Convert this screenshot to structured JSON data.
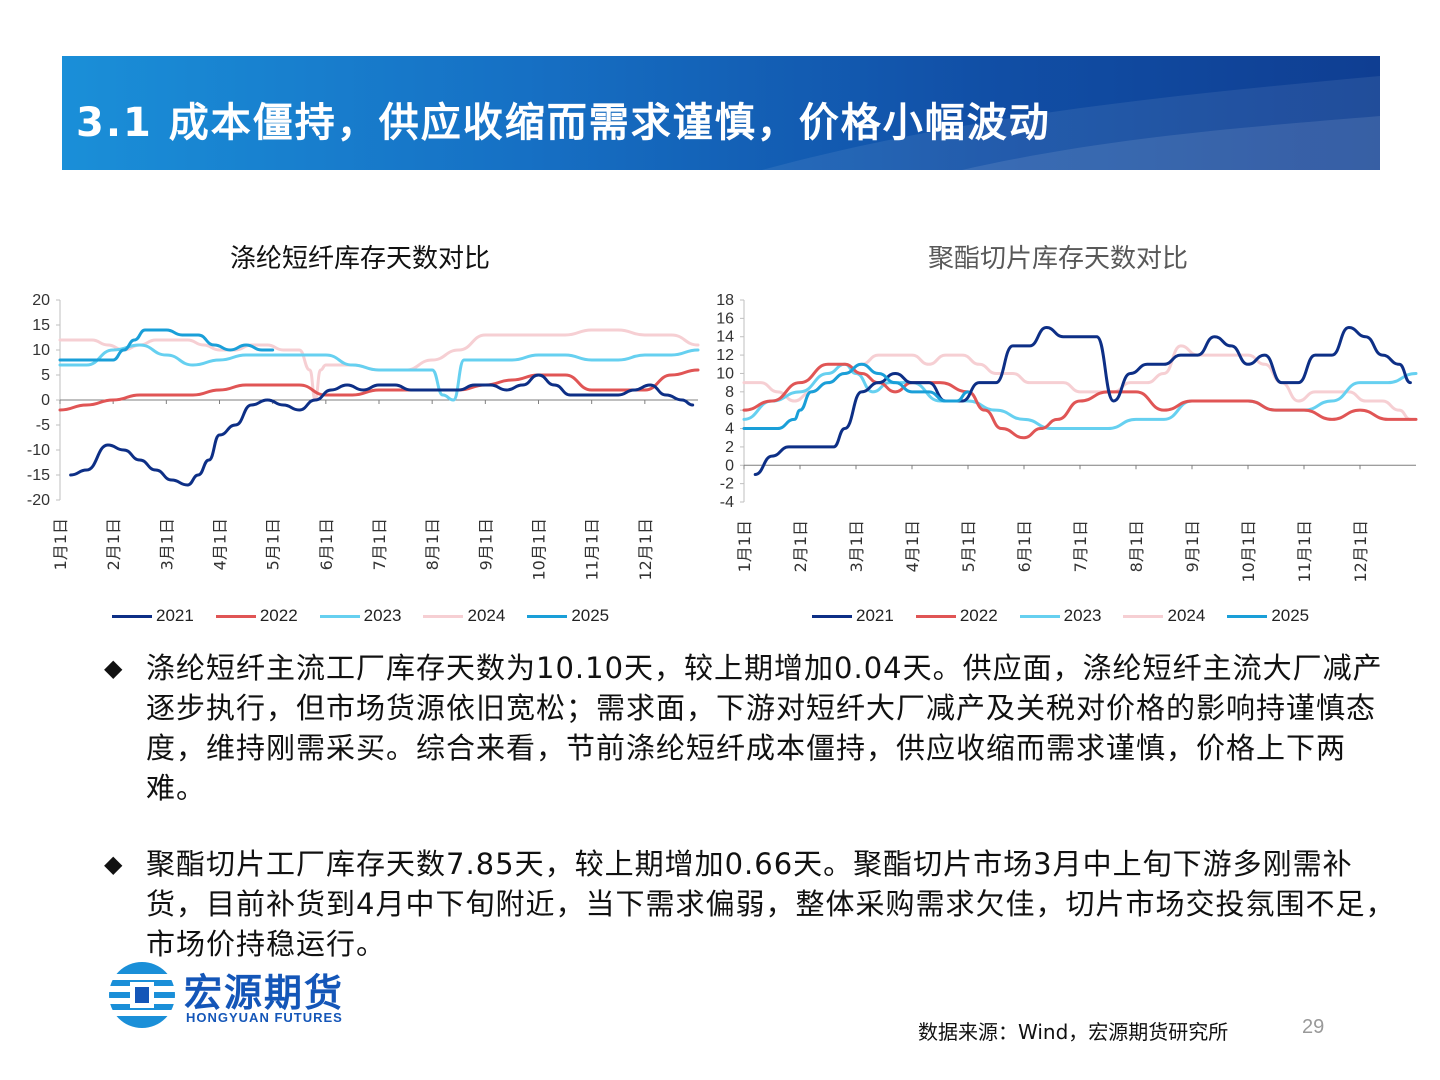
{
  "header": {
    "title": "3.1 成本僵持，供应收缩而需求谨慎，价格小幅波动"
  },
  "series_colors": {
    "2021": "#0d2f86",
    "2022": "#e05555",
    "2023": "#66d0f0",
    "2024": "#f6cfd3",
    "2025": "#1a9fd8"
  },
  "chart_data": [
    {
      "type": "line",
      "title": "涤纶短纤库存天数对比",
      "months": [
        "1月1日",
        "2月1日",
        "3月1日",
        "4月1日",
        "5月1日",
        "6月1日",
        "7月1日",
        "8月1日",
        "9月1日",
        "10月1日",
        "11月1日",
        "12月1日"
      ],
      "ylim": [
        -20,
        20
      ],
      "yticks": [
        20,
        15,
        10,
        5,
        0,
        -5,
        -10,
        -15,
        -20
      ],
      "series": [
        {
          "name": "2021",
          "x": [
            0.2,
            0.5,
            0.9,
            1.2,
            1.5,
            1.8,
            2.1,
            2.4,
            2.6,
            2.8,
            3.0,
            3.3,
            3.6,
            3.9,
            4.2,
            4.5,
            4.8,
            5.1,
            5.4,
            5.7,
            6.0,
            6.3,
            6.6,
            6.9,
            7.2,
            7.5,
            7.8,
            8.1,
            8.4,
            8.7,
            9.0,
            9.3,
            9.6,
            9.9,
            10.2,
            10.5,
            10.8,
            11.1,
            11.4,
            11.7,
            11.9
          ],
          "y": [
            -15,
            -14,
            -9,
            -10,
            -12,
            -14,
            -16,
            -17,
            -15,
            -12,
            -7,
            -5,
            -1,
            0,
            -1,
            -2,
            0,
            2,
            3,
            2,
            3,
            3,
            2,
            2,
            2,
            2,
            3,
            3,
            2,
            3,
            5,
            3,
            1,
            1,
            1,
            1,
            2,
            3,
            1,
            0,
            -1
          ]
        },
        {
          "name": "2022",
          "x": [
            0.0,
            0.5,
            1.0,
            1.5,
            2.0,
            2.5,
            3.0,
            3.5,
            4.0,
            4.5,
            5.0,
            5.5,
            6.0,
            6.5,
            7.0,
            7.5,
            8.0,
            8.5,
            9.0,
            9.5,
            10.0,
            10.5,
            11.0,
            11.5,
            12.0
          ],
          "y": [
            -2,
            -1,
            0,
            1,
            1,
            1,
            2,
            3,
            3,
            3,
            1,
            1,
            2,
            2,
            2,
            2,
            3,
            4,
            5,
            5,
            2,
            2,
            2,
            5,
            6
          ]
        },
        {
          "name": "2023",
          "x": [
            0.0,
            0.5,
            1.0,
            1.5,
            2.0,
            2.5,
            3.0,
            3.5,
            4.0,
            4.5,
            5.0,
            5.5,
            6.0,
            6.5,
            7.0,
            7.2,
            7.4,
            7.6,
            8.0,
            8.5,
            9.0,
            9.5,
            10.0,
            10.5,
            11.0,
            11.5,
            12.0
          ],
          "y": [
            7,
            7,
            10,
            11,
            9,
            7,
            8,
            9,
            9,
            9,
            9,
            7,
            6,
            6,
            6,
            1,
            0,
            8,
            8,
            8,
            9,
            9,
            8,
            8,
            9,
            9,
            10
          ]
        },
        {
          "name": "2024",
          "x": [
            0.0,
            0.3,
            0.6,
            0.9,
            1.2,
            1.5,
            1.8,
            2.1,
            2.4,
            2.7,
            3.0,
            3.3,
            3.6,
            3.9,
            4.2,
            4.5,
            4.7,
            4.8,
            4.9,
            5.0,
            5.2,
            5.5,
            6.0,
            6.5,
            7.0,
            7.5,
            8.0,
            8.5,
            9.0,
            9.5,
            10.0,
            10.5,
            11.0,
            11.5,
            12.0
          ],
          "y": [
            12,
            12,
            12,
            11,
            10,
            11,
            12,
            12,
            12,
            11,
            10,
            10,
            11,
            11,
            10,
            10,
            6,
            0,
            6,
            7,
            7,
            7,
            6,
            6,
            8,
            10,
            13,
            13,
            13,
            13,
            14,
            14,
            13,
            13,
            11
          ]
        },
        {
          "name": "2025",
          "x": [
            0.0,
            0.3,
            0.6,
            0.9,
            1.0,
            1.2,
            1.4,
            1.6,
            1.8,
            2.0,
            2.3,
            2.6,
            2.9,
            3.2,
            3.5,
            3.8,
            4.0
          ],
          "y": [
            8,
            8,
            8,
            8,
            8,
            10,
            12,
            14,
            14,
            14,
            13,
            13,
            11,
            10,
            11,
            10,
            10
          ]
        }
      ]
    },
    {
      "type": "line",
      "title": "聚酯切片库存天数对比",
      "months": [
        "1月1日",
        "2月1日",
        "3月1日",
        "4月1日",
        "5月1日",
        "6月1日",
        "7月1日",
        "8月1日",
        "9月1日",
        "10月1日",
        "11月1日",
        "12月1日"
      ],
      "ylim": [
        -4,
        18
      ],
      "yticks": [
        18,
        16,
        14,
        12,
        10,
        8,
        6,
        4,
        2,
        0,
        -2,
        -4
      ],
      "series": [
        {
          "name": "2021",
          "x": [
            0.2,
            0.5,
            0.8,
            1.0,
            1.3,
            1.6,
            1.8,
            2.1,
            2.4,
            2.7,
            3.0,
            3.3,
            3.6,
            3.9,
            4.2,
            4.5,
            4.8,
            5.1,
            5.4,
            5.7,
            6.0,
            6.3,
            6.6,
            6.9,
            7.2,
            7.5,
            7.8,
            8.1,
            8.4,
            8.7,
            9.0,
            9.3,
            9.6,
            9.9,
            10.2,
            10.5,
            10.8,
            11.1,
            11.4,
            11.7,
            11.9
          ],
          "y": [
            -1,
            1,
            2,
            2,
            2,
            2,
            4,
            8,
            9,
            10,
            9,
            9,
            7,
            7,
            9,
            9,
            13,
            13,
            15,
            14,
            14,
            14,
            7,
            10,
            11,
            11,
            12,
            12,
            14,
            13,
            11,
            12,
            9,
            9,
            12,
            12,
            15,
            14,
            12,
            11,
            9
          ]
        },
        {
          "name": "2022",
          "x": [
            0.0,
            0.5,
            1.0,
            1.5,
            1.8,
            2.1,
            2.4,
            2.7,
            3.0,
            3.5,
            4.0,
            4.3,
            4.6,
            5.0,
            5.3,
            5.6,
            6.0,
            6.5,
            7.0,
            7.5,
            8.0,
            8.5,
            9.0,
            9.5,
            10.0,
            10.5,
            11.0,
            11.5,
            12.0
          ],
          "y": [
            6,
            7,
            9,
            11,
            11,
            10,
            9,
            8,
            9,
            9,
            8,
            6,
            4,
            3,
            4,
            5,
            7,
            8,
            8,
            6,
            7,
            7,
            7,
            6,
            6,
            5,
            6,
            5,
            5
          ]
        },
        {
          "name": "2023",
          "x": [
            0.0,
            0.5,
            1.0,
            1.5,
            1.8,
            2.0,
            2.3,
            2.6,
            3.0,
            3.5,
            4.0,
            4.5,
            5.0,
            5.5,
            6.0,
            6.5,
            7.0,
            7.5,
            8.0,
            8.5,
            9.0,
            9.5,
            10.0,
            10.5,
            11.0,
            11.5,
            12.0
          ],
          "y": [
            5,
            7,
            8,
            10,
            11,
            10,
            8,
            9,
            9,
            7,
            7,
            6,
            5,
            4,
            4,
            4,
            5,
            5,
            7,
            7,
            7,
            6,
            6,
            7,
            9,
            9,
            10
          ]
        },
        {
          "name": "2024",
          "x": [
            0.0,
            0.3,
            0.6,
            0.9,
            1.2,
            1.5,
            1.8,
            2.1,
            2.4,
            2.7,
            3.0,
            3.3,
            3.6,
            3.9,
            4.2,
            4.5,
            4.8,
            5.1,
            5.4,
            5.7,
            6.0,
            6.3,
            6.6,
            6.9,
            7.2,
            7.5,
            7.8,
            8.1,
            8.4,
            8.7,
            9.0,
            9.3,
            9.6,
            9.9,
            10.2,
            10.5,
            10.8,
            11.1,
            11.4,
            11.7,
            11.9
          ],
          "y": [
            9,
            9,
            8,
            7,
            8,
            9,
            10,
            11,
            12,
            12,
            12,
            11,
            12,
            12,
            11,
            10,
            10,
            9,
            9,
            9,
            8,
            8,
            8,
            9,
            9,
            10,
            13,
            12,
            12,
            12,
            12,
            11,
            9,
            7,
            8,
            8,
            8,
            7,
            7,
            6,
            5
          ]
        },
        {
          "name": "2025",
          "x": [
            0.0,
            0.3,
            0.6,
            0.9,
            1.0,
            1.2,
            1.5,
            1.8,
            2.1,
            2.4,
            2.7,
            3.0,
            3.3,
            3.6,
            3.8,
            4.0
          ],
          "y": [
            4,
            4,
            4,
            5,
            6,
            8,
            9,
            10,
            11,
            10,
            9,
            8,
            8,
            7,
            7,
            8
          ]
        }
      ]
    }
  ],
  "bullets": [
    "涤纶短纤主流工厂库存天数为10.10天，较上期增加0.04天。供应面，涤纶短纤主流大厂减产逐步执行，但市场货源依旧宽松；需求面，下游对短纤大厂减产及关税对价格的影响持谨慎态度，维持刚需采买。综合来看，节前涤纶短纤成本僵持，供应收缩而需求谨慎，价格上下两难。",
    "聚酯切片工厂库存天数7.85天，较上期增加0.66天。聚酯切片市场3月中上旬下游多刚需补货，目前补货到4月中下旬附近，当下需求偏弱，整体采购需求欠佳，切片市场交投氛围不足，市场价持稳运行。"
  ],
  "bullet_symbol": "◆",
  "logo": {
    "cn": "宏源期货",
    "en": "HONGYUAN FUTURES"
  },
  "footer": {
    "source": "数据来源：Wind，宏源期货研究所",
    "page": "29"
  }
}
